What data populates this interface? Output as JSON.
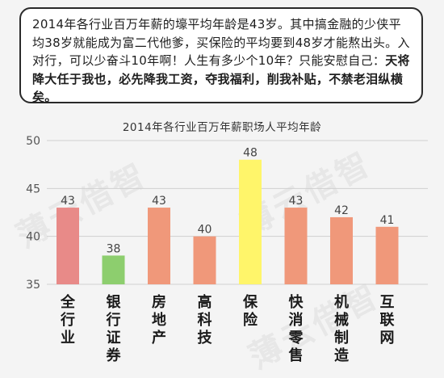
{
  "note": {
    "plain": "2014年各行业百万年薪的壕平均年龄是43岁。其中搞金融的少侠平均38岁就能成为富二代他爹，买保险的平均要到48岁才能熬出头。入对行，可以少奋斗10年啊！人生有多少个10年？只能安慰自己：",
    "bold": "天将降大任于我也，必先降我工资，夺我福利，削我补贴，不禁老泪纵横矣。"
  },
  "watermark": "薄云借智",
  "chart_data": {
    "type": "bar",
    "title": "2014年各行业百万年薪职场人平均年龄",
    "categories": [
      "全行业",
      "银行证券",
      "房地产",
      "高科技",
      "保险",
      "快消零售",
      "机械制造",
      "互联网"
    ],
    "values": [
      43,
      38,
      43,
      40,
      48,
      43,
      42,
      41
    ],
    "data_labels": [
      "43",
      "38",
      "43",
      "40",
      "48",
      "43",
      "42",
      "41"
    ],
    "ylim": [
      35,
      50
    ],
    "yticks": [
      "35",
      "40",
      "45",
      "50"
    ],
    "grid": true,
    "colors": [
      "#e88a88",
      "#8dce6e",
      "#f0987a",
      "#f0987a",
      "#fff56a",
      "#f0987a",
      "#f0987a",
      "#f0987a"
    ],
    "gridline_color": "#d0d0d0"
  }
}
